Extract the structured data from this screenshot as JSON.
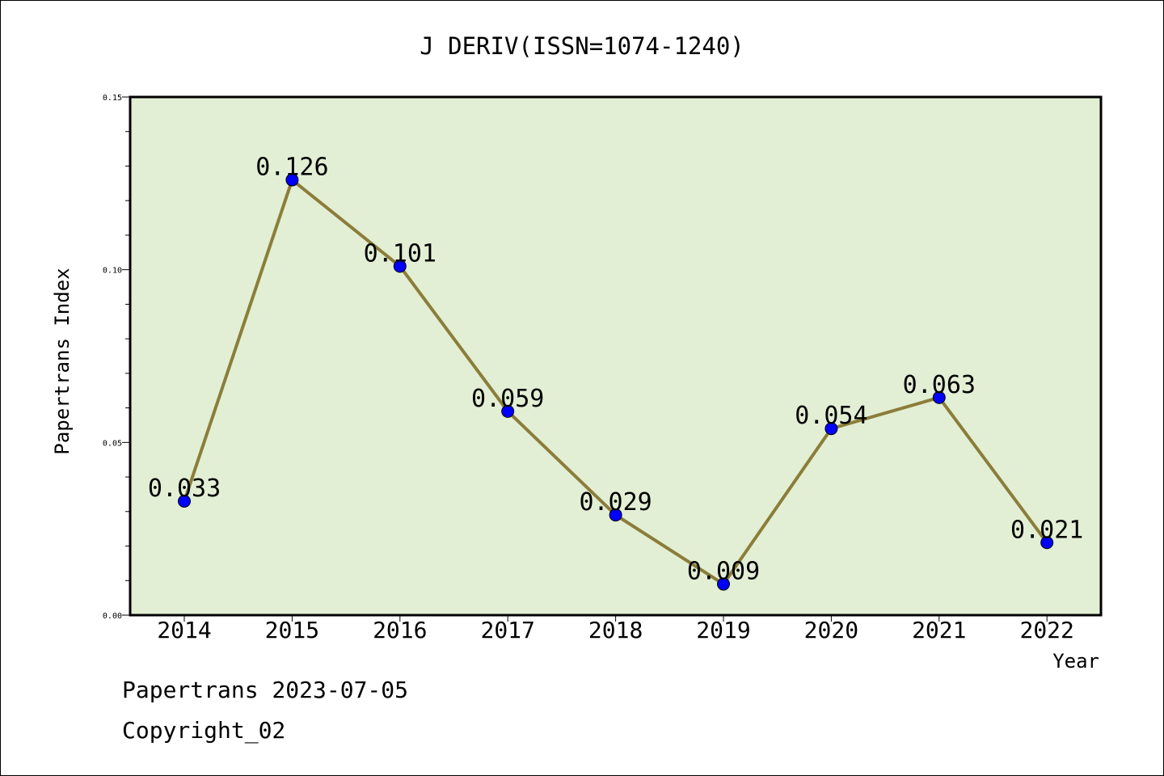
{
  "chart_data": {
    "type": "line",
    "title": "J DERIV(ISSN=1074-1240)",
    "xlabel": "Year",
    "ylabel": "Papertrans Index",
    "categories": [
      "2014",
      "2015",
      "2016",
      "2017",
      "2018",
      "2019",
      "2020",
      "2021",
      "2022"
    ],
    "values": [
      0.033,
      0.126,
      0.101,
      0.059,
      0.029,
      0.009,
      0.054,
      0.063,
      0.021
    ],
    "value_labels": [
      "0.033",
      "0.126",
      "0.101",
      "0.059",
      "0.029",
      "0.009",
      "0.054",
      "0.063",
      "0.021"
    ],
    "ylim": [
      0,
      0.15
    ],
    "yticks": [
      0.0,
      0.05,
      0.1,
      0.15
    ],
    "ytick_labels": [
      "0.00",
      "0.05",
      "0.10",
      "0.15"
    ],
    "grid": false,
    "colors": {
      "plot_background": "#e2efd4",
      "line": "#8b7d3a",
      "marker": "#0000ff"
    }
  },
  "footer": {
    "line1": "Papertrans 2023-07-05",
    "line2": "Copyright_02"
  }
}
